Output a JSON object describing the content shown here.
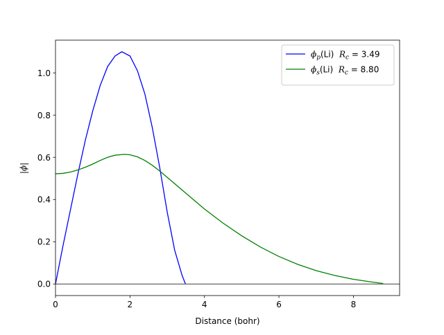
{
  "chart_data": {
    "type": "line",
    "xlabel": "Distance (bohr)",
    "ylabel": "|ϕ|",
    "xlim": [
      0,
      9.24
    ],
    "ylim": [
      -0.055,
      1.155
    ],
    "xticks": [
      0,
      2,
      4,
      6,
      8
    ],
    "yticks": [
      0.0,
      0.2,
      0.4,
      0.6,
      0.8,
      1.0
    ],
    "xtick_labels": [
      "0",
      "2",
      "4",
      "6",
      "8"
    ],
    "ytick_labels": [
      "0.0",
      "0.2",
      "0.4",
      "0.6",
      "0.8",
      "1.0"
    ],
    "grid": false,
    "legend_position": "top-right",
    "reference_line_y": 0,
    "series": [
      {
        "name": "ϕp(Li)  Rc = 3.49",
        "legend": {
          "sym": "ϕ",
          "sub": "p",
          "label": "(Li)",
          "rc": "R",
          "rcsub": "c",
          "eq": " = 3.49"
        },
        "color": "#0000ff",
        "x": [
          0,
          0.2,
          0.4,
          0.6,
          0.8,
          1.0,
          1.2,
          1.4,
          1.6,
          1.78,
          2.0,
          2.2,
          2.4,
          2.6,
          2.8,
          3.0,
          3.2,
          3.4,
          3.49
        ],
        "y": [
          0,
          0.18,
          0.35,
          0.52,
          0.68,
          0.82,
          0.94,
          1.03,
          1.08,
          1.1,
          1.08,
          1.01,
          0.9,
          0.74,
          0.55,
          0.34,
          0.16,
          0.04,
          0.0
        ]
      },
      {
        "name": "ϕs(Li)  Rc = 8.80",
        "legend": {
          "sym": "ϕ",
          "sub": "s",
          "label": "(Li)",
          "rc": "R",
          "rcsub": "c",
          "eq": " = 8.80"
        },
        "color": "#008000",
        "x": [
          0,
          0.2,
          0.4,
          0.6,
          0.8,
          1.0,
          1.2,
          1.4,
          1.6,
          1.85,
          2.0,
          2.2,
          2.4,
          2.6,
          2.8,
          3.0,
          3.5,
          4.0,
          4.5,
          5.0,
          5.5,
          6.0,
          6.5,
          7.0,
          7.5,
          8.0,
          8.5,
          8.8
        ],
        "y": [
          0.522,
          0.524,
          0.53,
          0.54,
          0.553,
          0.568,
          0.585,
          0.6,
          0.61,
          0.614,
          0.612,
          0.602,
          0.585,
          0.562,
          0.535,
          0.505,
          0.43,
          0.355,
          0.288,
          0.228,
          0.175,
          0.13,
          0.093,
          0.063,
          0.04,
          0.022,
          0.009,
          0.002
        ]
      }
    ]
  }
}
